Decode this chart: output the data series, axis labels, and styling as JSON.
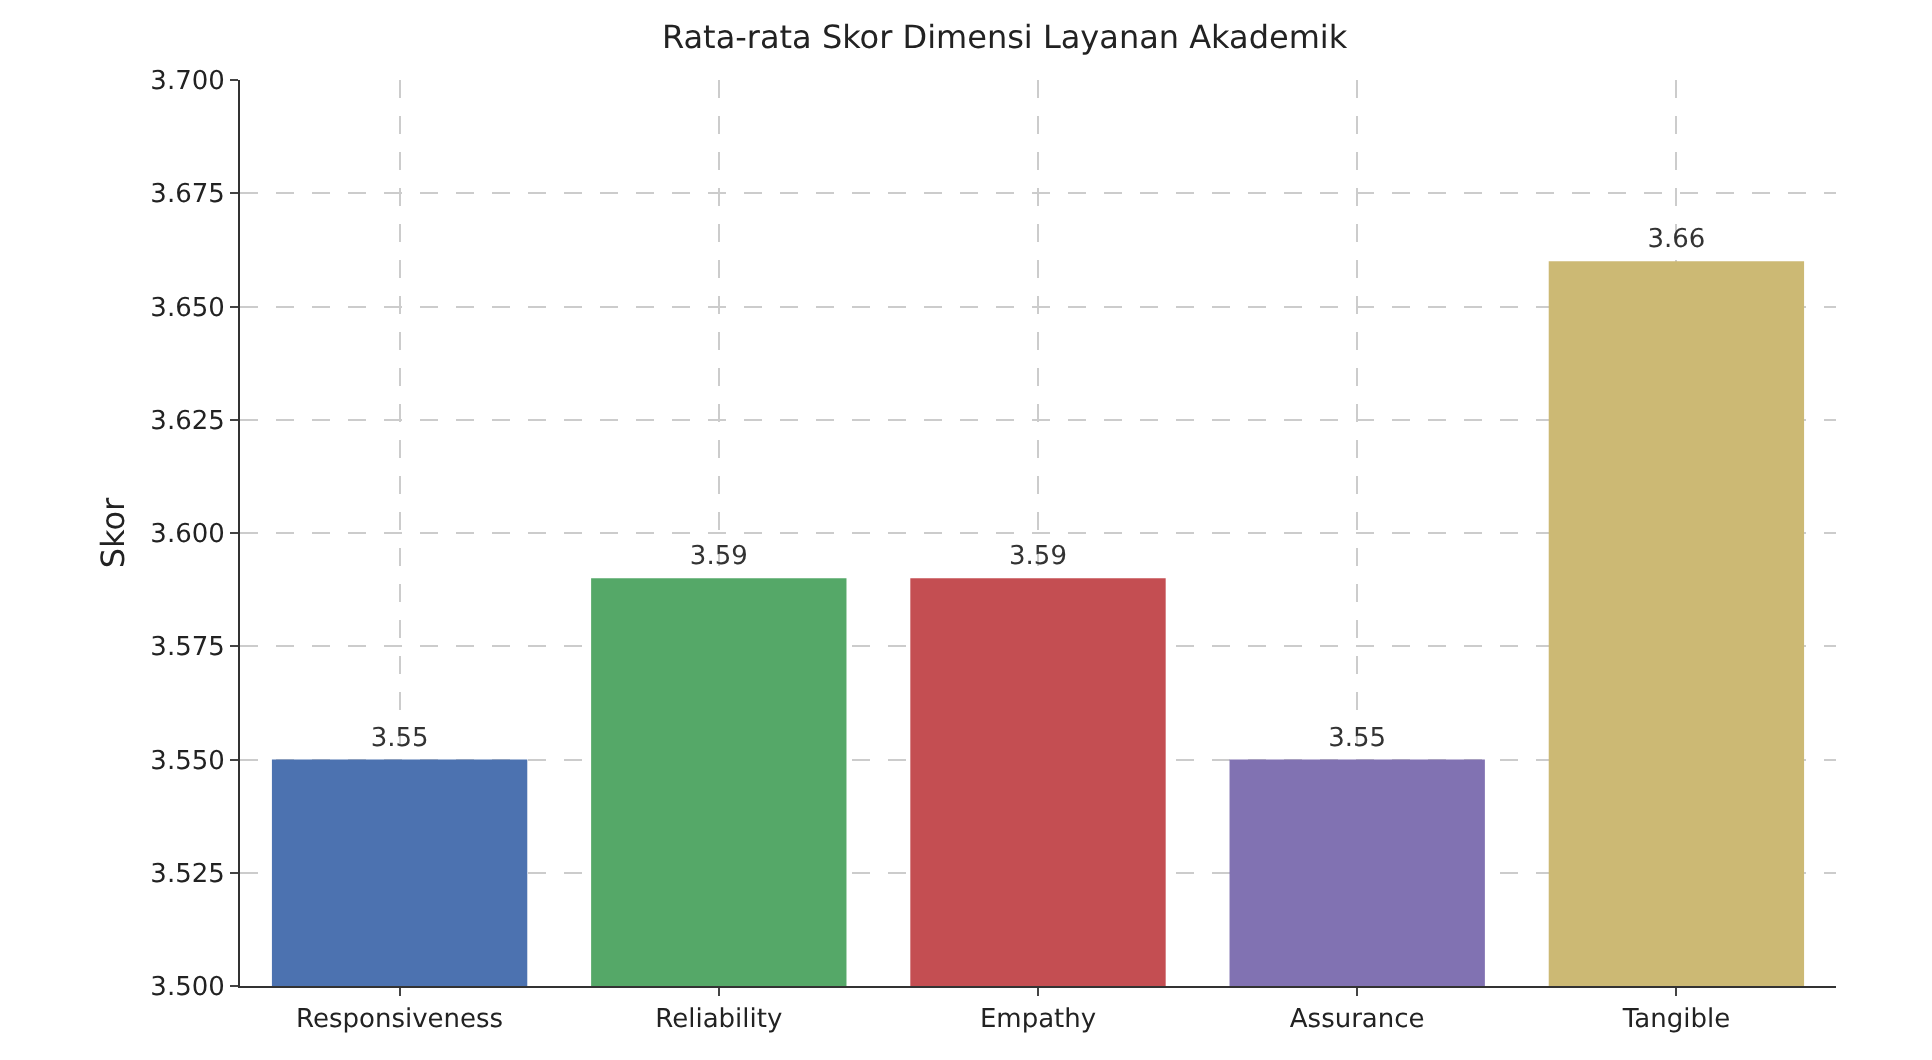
{
  "chart_data": {
    "type": "bar",
    "title": "Rata-rata Skor Dimensi Layanan Akademik",
    "ylabel": "Skor",
    "categories": [
      "Responsiveness",
      "Reliability",
      "Empathy",
      "Assurance",
      "Tangible"
    ],
    "values": [
      3.55,
      3.59,
      3.59,
      3.55,
      3.66
    ],
    "colors": [
      "#4c72b0",
      "#55a868",
      "#c44e52",
      "#8172b2",
      "#ccb974"
    ],
    "ylim": [
      3.5,
      3.7
    ],
    "yticks": [
      {
        "value": 3.5,
        "label": "3.500"
      },
      {
        "value": 3.525,
        "label": "3.525"
      },
      {
        "value": 3.55,
        "label": "3.550"
      },
      {
        "value": 3.575,
        "label": "3.575"
      },
      {
        "value": 3.6,
        "label": "3.600"
      },
      {
        "value": 3.625,
        "label": "3.625"
      },
      {
        "value": 3.65,
        "label": "3.650"
      },
      {
        "value": 3.675,
        "label": "3.675"
      },
      {
        "value": 3.7,
        "label": "3.700"
      }
    ],
    "grid": true,
    "data_labels": true
  }
}
